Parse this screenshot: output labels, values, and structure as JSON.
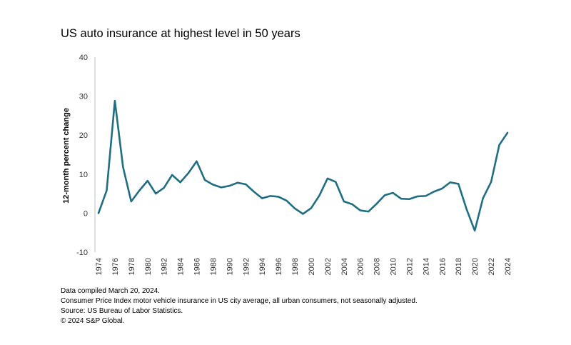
{
  "title": "US auto insurance at highest level in 50 years",
  "chart_data": {
    "type": "line",
    "title": "US auto insurance at highest level in 50 years",
    "xlabel": "",
    "ylabel": "12-month percent change",
    "ylim": [
      -10,
      40
    ],
    "yticks": [
      -10,
      0,
      10,
      20,
      30,
      40
    ],
    "xticks": [
      1974,
      1976,
      1978,
      1980,
      1982,
      1984,
      1986,
      1988,
      1990,
      1992,
      1994,
      1996,
      1998,
      2000,
      2002,
      2004,
      2006,
      2008,
      2010,
      2012,
      2014,
      2016,
      2018,
      2020,
      2022,
      2024
    ],
    "grid": false,
    "legend": "none",
    "line_color": "#1f6e82",
    "x": [
      1974,
      1975,
      1976,
      1977,
      1978,
      1979,
      1980,
      1981,
      1982,
      1983,
      1984,
      1985,
      1986,
      1987,
      1988,
      1989,
      1990,
      1991,
      1992,
      1993,
      1994,
      1995,
      1996,
      1997,
      1998,
      1999,
      2000,
      2001,
      2002,
      2003,
      2004,
      2005,
      2006,
      2007,
      2008,
      2009,
      2010,
      2011,
      2012,
      2013,
      2014,
      2015,
      2016,
      2017,
      2018,
      2019,
      2020,
      2021,
      2022,
      2023,
      2024
    ],
    "series": [
      {
        "values": [
          0,
          5.8,
          28.8,
          11.8,
          3,
          5.8,
          8.3,
          5,
          6.5,
          9.8,
          7.9,
          10.3,
          13.3,
          8.5,
          7.3,
          6.6,
          7,
          7.8,
          7.4,
          5.5,
          3.8,
          4.4,
          4.2,
          3.2,
          1.2,
          -0.2,
          1.3,
          4.5,
          8.9,
          8,
          3,
          2.3,
          0.7,
          0.4,
          2.4,
          4.6,
          5.2,
          3.7,
          3.6,
          4.3,
          4.4,
          5.5,
          6.3,
          7.9,
          7.5,
          1,
          -4.5,
          3.8,
          8,
          17.5,
          20.6
        ]
      }
    ]
  },
  "notes": {
    "line1": "Data compiled March 20, 2024.",
    "line2": "Consumer Price Index motor vehicle insurance in US city average, all urban consumers, not seasonally adjusted.",
    "line3": "Source: US Bureau of Labor Statistics.",
    "line4": "© 2024 S&P Global."
  }
}
